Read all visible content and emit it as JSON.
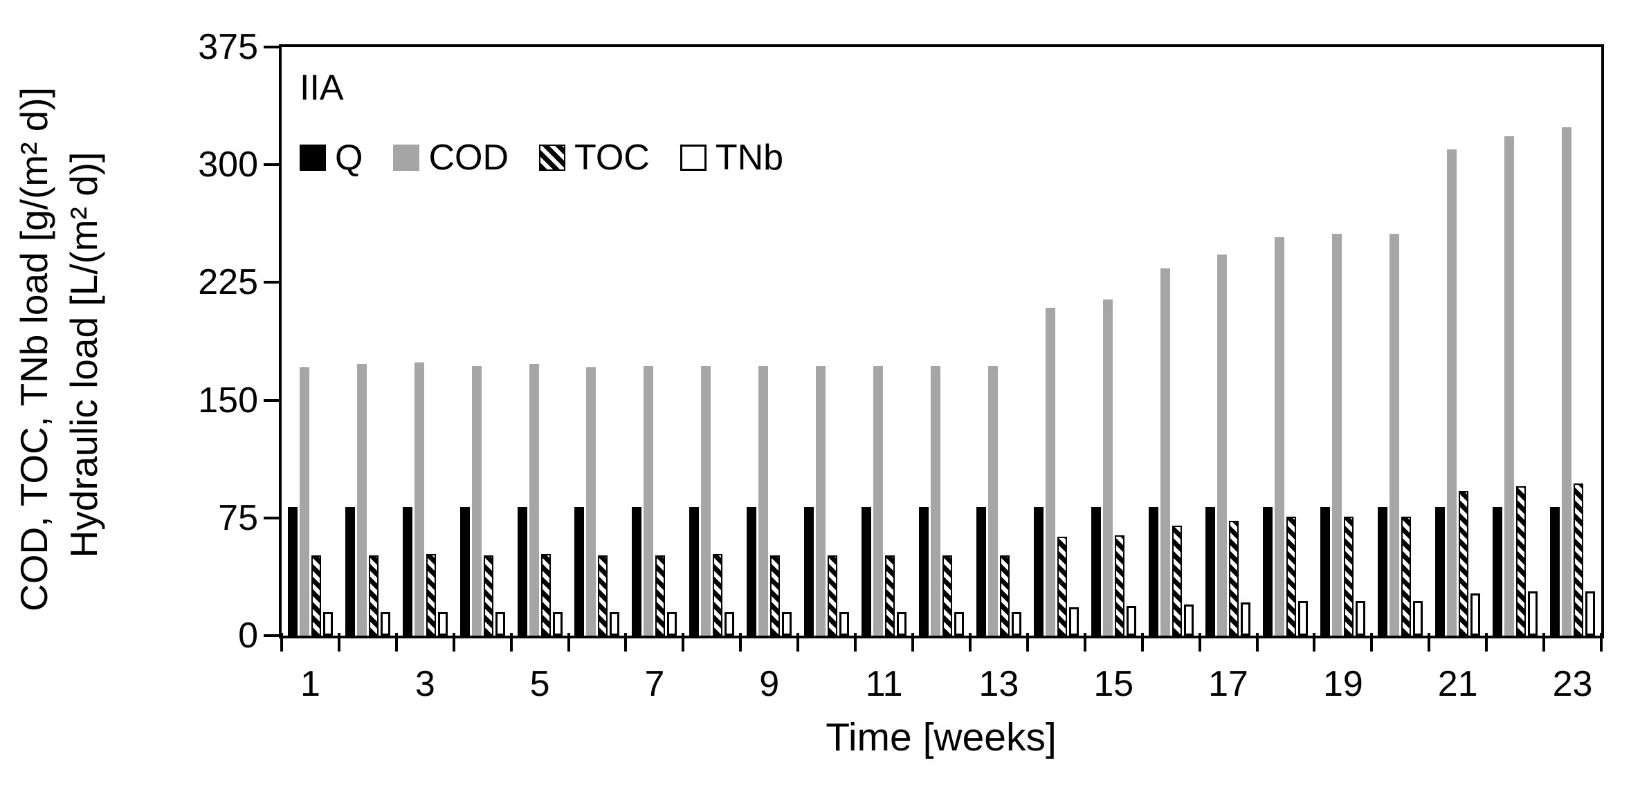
{
  "figure": {
    "panel_label": "IIA"
  },
  "axes": {
    "x_title": "Time [weeks]",
    "y_title_line1": "COD, TOC, TNb load  [g/(m² d)]",
    "y_title_line2": "Hydraulic load [L/(m² d)]"
  },
  "colors": {
    "black": "#000000",
    "bar_gray": "#a6a6a6",
    "background": "#ffffff"
  },
  "chart_data": {
    "type": "bar",
    "title": "IIA",
    "xlabel": "Time [weeks]",
    "ylabel": "COD, TOC, TNb load [g/(m² d)] / Hydraulic load [L/(m² d)]",
    "ylim": [
      0,
      375
    ],
    "y_ticks": [
      375,
      300,
      225,
      150,
      75,
      0
    ],
    "grid": false,
    "legend_position": "top-left-inside",
    "x": [
      1,
      2,
      3,
      4,
      5,
      6,
      7,
      8,
      9,
      10,
      11,
      12,
      13,
      14,
      15,
      16,
      17,
      18,
      19,
      20,
      21,
      22,
      23
    ],
    "x_labels_shown": [
      1,
      3,
      5,
      7,
      9,
      11,
      13,
      15,
      17,
      19,
      21,
      23
    ],
    "series": [
      {
        "name": "Q",
        "unit": "L/(m² d)",
        "swatch": "solid-black",
        "values": [
          82,
          82,
          82,
          82,
          82,
          82,
          82,
          82,
          82,
          82,
          82,
          82,
          82,
          82,
          82,
          82,
          82,
          82,
          82,
          82,
          82,
          82,
          82
        ]
      },
      {
        "name": "COD",
        "unit": "g/(m² d)",
        "swatch": "solid-gray",
        "values": [
          171,
          173,
          174,
          172,
          173,
          171,
          172,
          172,
          172,
          172,
          172,
          172,
          172,
          209,
          214,
          234,
          243,
          254,
          256,
          256,
          310,
          318,
          324
        ]
      },
      {
        "name": "TOC",
        "unit": "g/(m² d)",
        "swatch": "diagonal-pattern",
        "values": [
          51,
          51,
          52,
          51,
          52,
          51,
          51,
          52,
          51,
          51,
          51,
          51,
          51,
          63,
          64,
          70,
          73,
          76,
          76,
          76,
          92,
          95,
          97
        ]
      },
      {
        "name": "TNb",
        "unit": "g/(m² d)",
        "swatch": "white-outline",
        "values": [
          15,
          15,
          15,
          15,
          15,
          15,
          15,
          15,
          15,
          15,
          15,
          15,
          15,
          18,
          19,
          20,
          21,
          22,
          22,
          22,
          27,
          28,
          28
        ]
      }
    ]
  }
}
